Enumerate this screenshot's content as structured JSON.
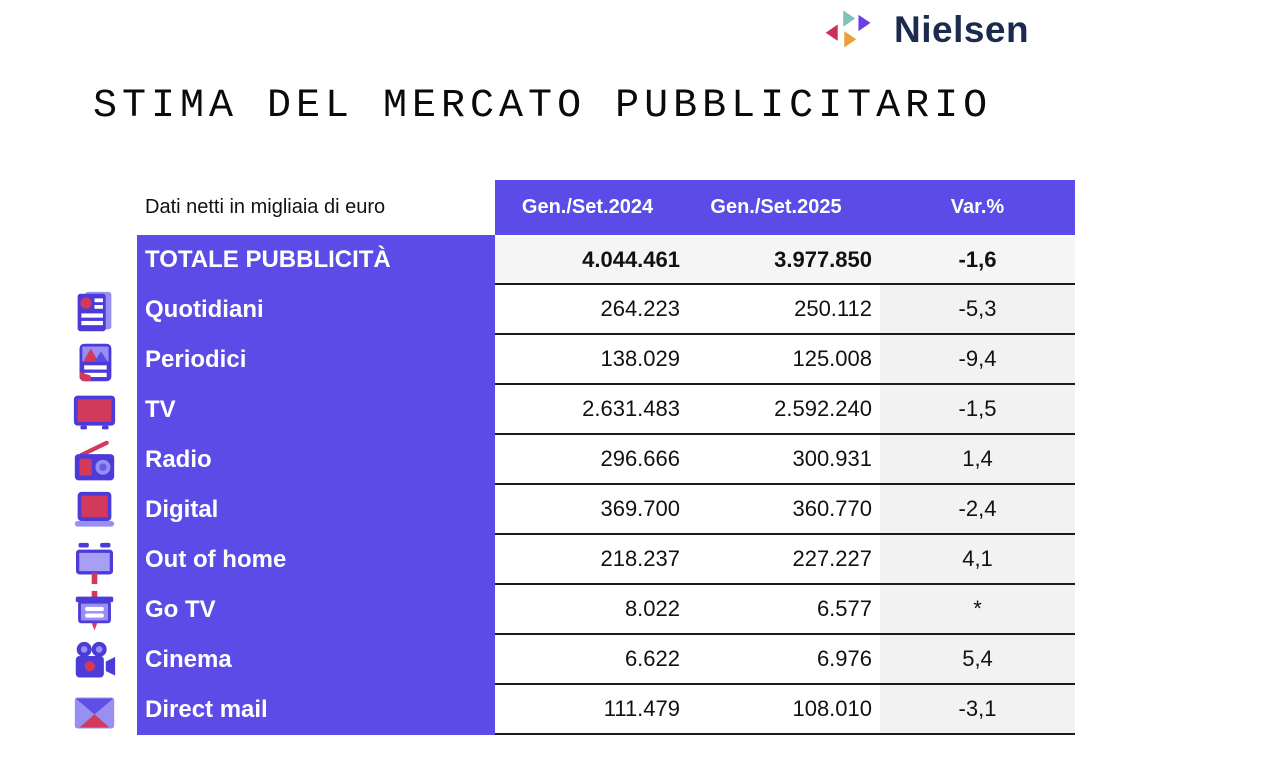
{
  "logo": {
    "brand": "Nielsen",
    "wordmark_color": "#1B2B4D",
    "triangle_colors": {
      "red": "#C9305A",
      "teal": "#7FC2BC",
      "purple": "#6B3EE8",
      "orange": "#E9A13B"
    }
  },
  "title": "STIMA DEL MERCATO PUBBLICITARIO",
  "colors": {
    "accent_purple": "#5C4BE6",
    "row_grey": "#f5f5f5",
    "var_col_grey": "#f2f2f2",
    "icon_crimson": "#D23A5C",
    "icon_indigo": "#4C3BD8",
    "icon_light_purple": "#978FF1",
    "line_black": "#1b1b1b"
  },
  "table": {
    "unit_label": "Dati netti in migliaia di euro",
    "columns": [
      "Gen./Set.2024",
      "Gen./Set.2025",
      "Var.%"
    ],
    "rows": [
      {
        "label": "TOTALE PUBBLICITÀ",
        "v2024": "4.044.461",
        "v2025": "3.977.850",
        "var": "-1,6",
        "icon": null,
        "bold": true
      },
      {
        "label": "Quotidiani",
        "v2024": "264.223",
        "v2025": "250.112",
        "var": "-5,3",
        "icon": "newspaper-icon"
      },
      {
        "label": "Periodici",
        "v2024": "138.029",
        "v2025": "125.008",
        "var": "-9,4",
        "icon": "magazine-icon"
      },
      {
        "label": "TV",
        "v2024": "2.631.483",
        "v2025": "2.592.240",
        "var": "-1,5",
        "icon": "tv-icon"
      },
      {
        "label": "Radio",
        "v2024": "296.666",
        "v2025": "300.931",
        "var": "1,4",
        "icon": "radio-icon"
      },
      {
        "label": "Digital",
        "v2024": "369.700",
        "v2025": "360.770",
        "var": "-2,4",
        "icon": "laptop-icon"
      },
      {
        "label": "Out of home",
        "v2024": "218.237",
        "v2025": "227.227",
        "var": "4,1",
        "icon": "billboard-icon"
      },
      {
        "label": "Go TV",
        "v2024": "8.022",
        "v2025": "6.577",
        "var": "*",
        "icon": "gotv-icon"
      },
      {
        "label": "Cinema",
        "v2024": "6.622",
        "v2025": "6.976",
        "var": "5,4",
        "icon": "cinema-icon"
      },
      {
        "label": "Direct mail",
        "v2024": "111.479",
        "v2025": "108.010",
        "var": "-3,1",
        "icon": "mail-icon"
      }
    ]
  }
}
